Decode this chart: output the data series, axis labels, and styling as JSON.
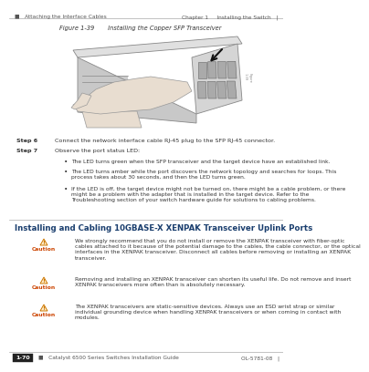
{
  "bg_color": "#ffffff",
  "header_left": "■   Attaching the Interface Cables",
  "header_right": "Chapter 1     Installing the Switch   |",
  "header_fontsize": 4.2,
  "header_color": "#555555",
  "fig_caption": "Figure 1-39       Installing the Copper SFP Transceiver",
  "fig_caption_fontsize": 4.8,
  "fig_caption_italic": true,
  "step6_label": "Step 6",
  "step6_text": "Connect the network interface cable RJ-45 plug to the SFP RJ-45 connector.",
  "step7_label": "Step 7",
  "step7_text": "Observe the port status LED:",
  "step_fontsize": 4.6,
  "bullet1": "The LED turns green when the SFP transceiver and the target device have an established link.",
  "bullet2": "The LED turns amber while the port discovers the network topology and searches for loops. This\nprocess takes about 30 seconds, and then the LED turns green.",
  "bullet3": "If the LED is off, the target device might not be turned on, there might be a cable problem, or there\nmight be a problem with the adapter that is installed in the target device. Refer to the\nTroubleshooting section of your switch hardware guide for solutions to cabling problems.",
  "bullet_fontsize": 4.3,
  "section_title": "Installing and Cabling 10GBASE-X XENPAK Transceiver Uplink Ports",
  "section_title_fontsize": 6.2,
  "section_title_color": "#1a3e6e",
  "caution_label": "Caution",
  "caution_color": "#cc4400",
  "caution_fontsize": 4.3,
  "caution1": "We strongly recommend that you do not install or remove the XENPAK transceiver with fiber-optic\ncables attached to it because of the potential damage to the cables, the cable connector, or the optical\ninterfaces in the XENPAK transceiver. Disconnect all cables before removing or installing an XENPAK\ntransceiver.",
  "caution2": "Removing and installing an XENPAK transceiver can shorten its useful life. Do not remove and insert\nXENPAK transceivers more often than is absolutely necessary.",
  "caution3": "The XENPAK transceivers are static-sensitive devices. Always use an ESD wrist strap or similar\nindividual grounding device when handling XENPAK transceivers or when coming in contact with\nmodules.",
  "footer_box": "1-70",
  "footer_left": "Catalyst 6500 Series Switches Installation Guide",
  "footer_right": "OL-5781-08   |",
  "footer_fontsize": 4.2,
  "text_color": "#333333",
  "line_color": "#aaaaaa"
}
